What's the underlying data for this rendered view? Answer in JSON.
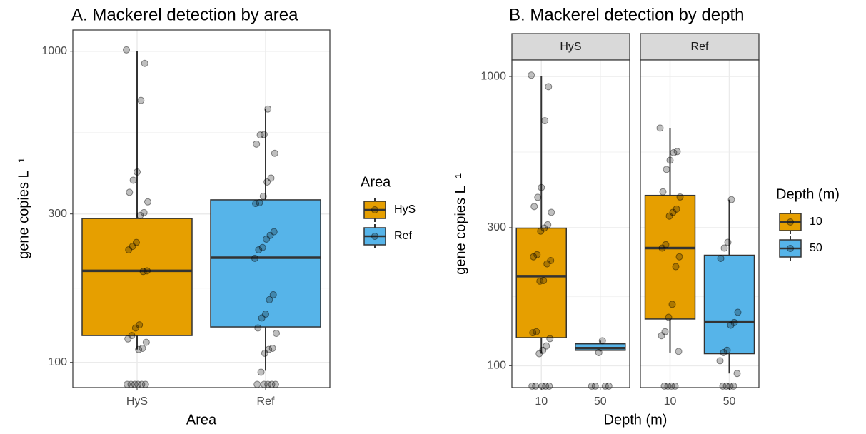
{
  "chart_data": [
    {
      "type": "box",
      "title": "A. Mackerel detection by area",
      "x_label": "Area",
      "y_label": "gene copies L⁻¹",
      "log_y": true,
      "grid": true,
      "ylim": [
        83,
        1170
      ],
      "yticks": [
        100,
        300,
        1000
      ],
      "categories": [
        "HyS",
        "Ref"
      ],
      "legend_title": "Area",
      "series": [
        {
          "name": "HyS",
          "color": "#E69F00",
          "whisker_low": 110,
          "q1": 122,
          "median": 197,
          "q3": 290,
          "whisker_high": 1000,
          "points": [
            1010,
            914,
            695,
            409,
            385,
            352,
            328,
            303,
            297,
            243,
            236,
            230,
            197,
            196,
            132,
            129,
            122,
            119,
            116,
            111,
            110,
            85,
            85,
            85,
            85,
            85,
            85
          ]
        },
        {
          "name": "Ref",
          "color": "#56B4E9",
          "whisker_low": 94,
          "q1": 130,
          "median": 217,
          "q3": 333,
          "whisker_high": 652,
          "points": [
            652,
            540,
            538,
            503,
            470,
            391,
            380,
            342,
            326,
            324,
            263,
            256,
            249,
            234,
            230,
            216,
            165,
            159,
            143,
            139,
            129,
            124,
            111,
            110,
            107,
            93,
            85,
            85,
            85,
            85,
            85
          ]
        }
      ]
    },
    {
      "type": "faceted_box",
      "title": "B. Mackerel detection by depth",
      "x_label": "Depth (m)",
      "y_label": "gene copies L⁻¹",
      "log_y": true,
      "grid": true,
      "ylim": [
        84,
        1140
      ],
      "yticks": [
        100,
        300,
        1000
      ],
      "categories": [
        "10",
        "50"
      ],
      "legend_title": "Depth (m)",
      "series": [
        {
          "name": "10",
          "color": "#E69F00"
        },
        {
          "name": "50",
          "color": "#56B4E9"
        }
      ],
      "facets": [
        {
          "label": "HyS",
          "boxes": [
            {
              "whisker_low": 110,
              "q1": 125,
              "median": 204,
              "q3": 299,
              "whisker_high": 1000,
              "points": [
                1010,
                922,
                703,
                413,
                382,
                355,
                339,
                307,
                299,
                292,
                242,
                238,
                231,
                225,
                197,
                196,
                131,
                130,
                124,
                117,
                113,
                110,
                85,
                85,
                85,
                85,
                85
              ]
            },
            {
              "whisker_low": 112,
              "q1": 113,
              "median": 115,
              "q3": 119,
              "whisker_high": 122,
              "points": [
                122,
                111,
                85,
                85,
                85,
                85
              ]
            }
          ]
        },
        {
          "label": "Ref",
          "boxes": [
            {
              "whisker_low": 111,
              "q1": 145,
              "median": 255,
              "q3": 388,
              "whisker_high": 663,
              "points": [
                663,
                550,
                545,
                513,
                477,
                399,
                383,
                348,
                339,
                329,
                262,
                255,
                238,
                220,
                163,
                147,
                131,
                127,
                112,
                85,
                85,
                85,
                85
              ]
            },
            {
              "whisker_low": 94,
              "q1": 110,
              "median": 142,
              "q3": 241,
              "whisker_high": 375,
              "points": [
                375,
                267,
                255,
                235,
                153,
                141,
                138,
                113,
                111,
                104,
                94,
                85,
                85,
                85,
                85
              ]
            }
          ]
        }
      ]
    }
  ]
}
